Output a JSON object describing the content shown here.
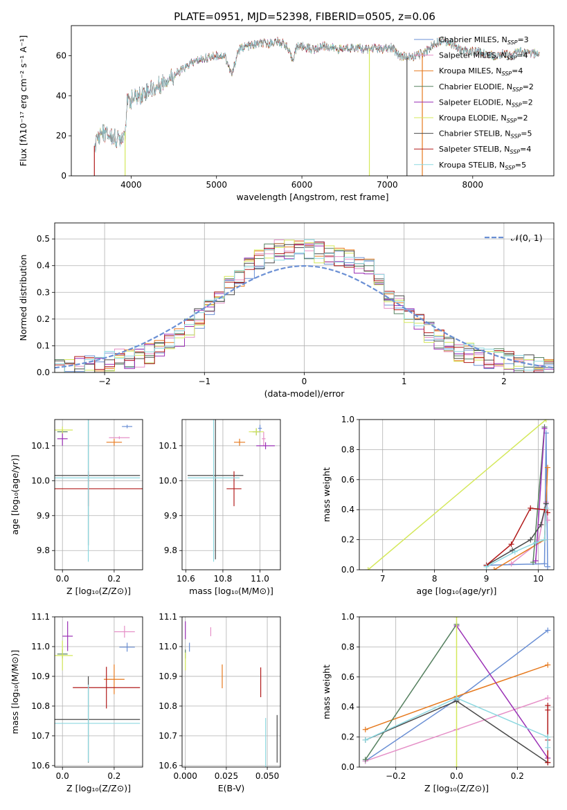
{
  "figure": {
    "title": "PLATE=0951, MJD=52398, FIBERID=0505, z=0.06"
  },
  "chart_data": [
    {
      "id": "spectrum",
      "type": "line",
      "title": "PLATE=0951, MJD=52398, FIBERID=0505, z=0.06",
      "xlabel": "wavelength [Angstrom, rest frame]",
      "ylabel": "Flux [fλ10⁻¹⁷ erg cm⁻² s⁻¹ A⁻¹]",
      "xlim": [
        3300,
        8950
      ],
      "ylim": [
        0,
        75
      ],
      "xticks": [
        4000,
        5000,
        6000,
        7000,
        8000
      ],
      "yticks": [
        0,
        20,
        40,
        60
      ],
      "grid": false,
      "legend_position": "top-right",
      "spectrum_shape": {
        "x": [
          3570,
          3650,
          3750,
          3850,
          3930,
          3950,
          4000,
          4100,
          4200,
          4300,
          4400,
          4500,
          4600,
          4700,
          4800,
          4900,
          5000,
          5100,
          5180,
          5250,
          5300,
          5400,
          5500,
          5600,
          5700,
          5800,
          5890,
          5950,
          6050,
          6150,
          6250,
          6350,
          6450,
          6550,
          6650,
          6750,
          6850,
          6950,
          7050,
          7150,
          7250,
          7350,
          7450,
          7550,
          7650,
          7750,
          7850,
          7950,
          8050,
          8150,
          8250,
          8350,
          8450,
          8550,
          8650,
          8780
        ],
        "y": [
          15,
          22,
          20,
          18,
          22,
          36,
          38,
          40,
          43,
          44,
          48,
          50,
          53,
          56,
          58,
          59,
          60,
          60,
          50,
          62,
          64,
          65,
          66,
          66,
          67,
          66,
          58,
          65,
          64,
          63,
          65,
          64,
          63,
          64,
          64,
          63,
          64,
          63,
          64,
          60,
          59,
          60,
          62,
          66,
          68,
          66,
          63,
          62,
          62,
          61,
          60,
          61,
          60,
          62,
          61,
          61
        ]
      },
      "series": [
        {
          "name": "Chabrier MILES, N_SSP=3",
          "color": "#6a8fd4"
        },
        {
          "name": "Salpeter MILES, N_SSP=4",
          "color": "#e58fc7"
        },
        {
          "name": "Kroupa MILES, N_SSP=4",
          "color": "#e6791d"
        },
        {
          "name": "Chabrier ELODIE, N_SSP=2",
          "color": "#55805f"
        },
        {
          "name": "Salpeter ELODIE, N_SSP=2",
          "color": "#9a2fb5"
        },
        {
          "name": "Kroupa ELODIE, N_SSP=2",
          "color": "#d4e85a"
        },
        {
          "name": "Chabrier STELIB, N_SSP=5",
          "color": "#4a4a4a"
        },
        {
          "name": "Salpeter STELIB, N_SSP=4",
          "color": "#b11a1a"
        },
        {
          "name": "Kroupa STELIB, N_SSP=5",
          "color": "#8cd8e0"
        }
      ],
      "legend": [
        {
          "base": "Chabrier MILES, N",
          "sub": "SSP",
          "suffix": "=3",
          "color": "#6a8fd4"
        },
        {
          "base": "Salpeter MILES, N",
          "sub": "SSP",
          "suffix": "=4",
          "color": "#e58fc7"
        },
        {
          "base": "Kroupa MILES, N",
          "sub": "SSP",
          "suffix": "=4",
          "color": "#e6791d"
        },
        {
          "base": "Chabrier ELODIE, N",
          "sub": "SSP",
          "suffix": "=2",
          "color": "#55805f"
        },
        {
          "base": "Salpeter ELODIE, N",
          "sub": "SSP",
          "suffix": "=2",
          "color": "#9a2fb5"
        },
        {
          "base": "Kroupa ELODIE, N",
          "sub": "SSP",
          "suffix": "=2",
          "color": "#d4e85a"
        },
        {
          "base": "Chabrier STELIB, N",
          "sub": "SSP",
          "suffix": "=5",
          "color": "#4a4a4a"
        },
        {
          "base": "Salpeter STELIB, N",
          "sub": "SSP",
          "suffix": "=4",
          "color": "#b11a1a"
        },
        {
          "base": "Kroupa STELIB, N",
          "sub": "SSP",
          "suffix": "=5",
          "color": "#8cd8e0"
        }
      ]
    },
    {
      "id": "residuals",
      "type": "line",
      "xlabel": "(data-model)/error",
      "ylabel": "Normed distribution",
      "xlim": [
        -2.5,
        2.5
      ],
      "ylim": [
        0,
        0.56
      ],
      "xticks": [
        -2,
        -1,
        0,
        1,
        2
      ],
      "yticks": [
        0.0,
        0.1,
        0.2,
        0.3,
        0.4,
        0.5
      ],
      "grid": true,
      "legend_position": "top-right",
      "reference": {
        "name": "𝒩(0, 1)",
        "color": "#6a8fd4",
        "style": "dashed"
      },
      "bin_width": 0.1,
      "histogram_shape": {
        "bin_centers": [
          -2.45,
          -2.35,
          -2.25,
          -2.15,
          -2.05,
          -1.95,
          -1.85,
          -1.75,
          -1.65,
          -1.55,
          -1.45,
          -1.35,
          -1.25,
          -1.15,
          -1.05,
          -0.95,
          -0.85,
          -0.75,
          -0.65,
          -0.55,
          -0.45,
          -0.35,
          -0.25,
          -0.15,
          -0.05,
          0.05,
          0.15,
          0.25,
          0.35,
          0.45,
          0.55,
          0.65,
          0.75,
          0.85,
          0.95,
          1.05,
          1.15,
          1.25,
          1.35,
          1.45,
          1.55,
          1.65,
          1.75,
          1.85,
          1.95,
          2.05,
          2.15,
          2.25,
          2.35,
          2.45
        ],
        "values": [
          0.01,
          0.01,
          0.02,
          0.03,
          0.03,
          0.04,
          0.05,
          0.05,
          0.06,
          0.07,
          0.09,
          0.11,
          0.13,
          0.17,
          0.2,
          0.24,
          0.28,
          0.32,
          0.36,
          0.39,
          0.42,
          0.45,
          0.46,
          0.46,
          0.47,
          0.46,
          0.45,
          0.44,
          0.43,
          0.42,
          0.41,
          0.39,
          0.33,
          0.28,
          0.25,
          0.22,
          0.18,
          0.15,
          0.12,
          0.1,
          0.08,
          0.07,
          0.06,
          0.05,
          0.05,
          0.04,
          0.03,
          0.03,
          0.02,
          0.02
        ]
      }
    },
    {
      "id": "age-vs-Z",
      "type": "scatter",
      "xlabel": "Z [log₁₀(Z/Z⊙)]",
      "ylabel": "age  [log₁₀(age/yr)]",
      "xlim": [
        -0.03,
        0.31
      ],
      "ylim": [
        9.745,
        10.175
      ],
      "xticks": [
        0.0,
        0.2
      ],
      "yticks": [
        9.8,
        9.9,
        10.0,
        10.1
      ],
      "grid": true,
      "points": [
        {
          "series": "Chabrier MILES",
          "x": 0.25,
          "y": 10.155,
          "xerr": 0.02,
          "yerr": 0.005
        },
        {
          "series": "Salpeter MILES",
          "x": 0.22,
          "y": 10.123,
          "xerr": 0.04,
          "yerr": 0.004
        },
        {
          "series": "Kroupa MILES",
          "x": 0.2,
          "y": 10.11,
          "xerr": 0.03,
          "yerr": 0.01
        },
        {
          "series": "Chabrier ELODIE",
          "x": 0.0,
          "y": 10.14,
          "xerr": 0.02,
          "yerr": 0.005
        },
        {
          "series": "Salpeter ELODIE",
          "x": 0.0,
          "y": 10.12,
          "xerr": 0.02,
          "yerr": 0.02
        },
        {
          "series": "Kroupa ELODIE",
          "x": 0.0,
          "y": 10.145,
          "xerr": 0.04,
          "yerr": 0.01
        },
        {
          "series": "Chabrier STELIB",
          "x": 0.1,
          "y": 10.015,
          "xerr": 0.2,
          "yerr": 0.2
        },
        {
          "series": "Salpeter STELIB",
          "x": 0.1,
          "y": 9.977,
          "xerr": 0.24,
          "yerr": 0.05
        },
        {
          "series": "Kroupa STELIB",
          "x": 0.1,
          "y": 10.008,
          "xerr": 0.2,
          "yerr": 0.24
        }
      ]
    },
    {
      "id": "age-vs-mass",
      "type": "scatter",
      "xlabel": "mass [log₁₀(M/M⊙)]",
      "xlim": [
        10.58,
        11.11
      ],
      "ylim": [
        9.745,
        10.175
      ],
      "xticks": [
        10.6,
        10.8,
        11.0
      ],
      "yticks": [
        9.8,
        9.9,
        10.0,
        10.1
      ],
      "grid": true,
      "points": [
        {
          "series": "Chabrier MILES",
          "x": 11.0,
          "y": 10.15,
          "xerr": 0.01,
          "yerr": 0.01
        },
        {
          "series": "Salpeter MILES",
          "x": 11.02,
          "y": 10.12,
          "xerr": 0.01,
          "yerr": 0.02
        },
        {
          "series": "Kroupa MILES",
          "x": 10.89,
          "y": 10.11,
          "xerr": 0.03,
          "yerr": 0.01
        },
        {
          "series": "Chabrier ELODIE",
          "x": 10.98,
          "y": 10.14,
          "xerr": 0.02,
          "yerr": 0.01
        },
        {
          "series": "Salpeter ELODIE",
          "x": 11.03,
          "y": 10.1,
          "xerr": 0.05,
          "yerr": 0.01
        },
        {
          "series": "Kroupa ELODIE",
          "x": 10.98,
          "y": 10.14,
          "xerr": 0.04,
          "yerr": 0.01
        },
        {
          "series": "Chabrier STELIB",
          "x": 10.76,
          "y": 10.015,
          "xerr": 0.15,
          "yerr": 0.24
        },
        {
          "series": "Salpeter STELIB",
          "x": 10.86,
          "y": 9.977,
          "xerr": 0.04,
          "yerr": 0.05
        },
        {
          "series": "Kroupa STELIB",
          "x": 10.75,
          "y": 10.008,
          "xerr": 0.14,
          "yerr": 0.24
        }
      ]
    },
    {
      "id": "weight-vs-age",
      "type": "line",
      "xlabel": "age  [log₁₀(age/yr)]",
      "ylabel": "mass weight",
      "xlim": [
        6.55,
        10.3
      ],
      "ylim": [
        0,
        1.0
      ],
      "xticks": [
        7,
        8,
        9,
        10
      ],
      "yticks": [
        0.0,
        0.2,
        0.4,
        0.6,
        0.8,
        1.0
      ],
      "grid": true,
      "series": [
        {
          "name": "Chabrier MILES",
          "x": [
            9.0,
            10.12,
            10.15,
            10.18
          ],
          "y": [
            0.03,
            0.04,
            0.91,
            0.02
          ]
        },
        {
          "name": "Salpeter MILES",
          "x": [
            9.48,
            10.0,
            10.15,
            10.18
          ],
          "y": [
            0.04,
            0.18,
            0.45,
            0.33
          ]
        },
        {
          "name": "Kroupa MILES",
          "x": [
            9.15,
            10.12,
            10.18
          ],
          "y": [
            0.0,
            0.2,
            0.68
          ]
        },
        {
          "name": "Chabrier ELODIE",
          "x": [
            9.9,
            10.12
          ],
          "y": [
            0.05,
            0.95
          ]
        },
        {
          "name": "Salpeter ELODIE",
          "x": [
            9.95,
            10.12
          ],
          "y": [
            0.06,
            0.94
          ]
        },
        {
          "name": "Kroupa ELODIE",
          "x": [
            6.72,
            10.15
          ],
          "y": [
            0.0,
            1.0
          ]
        },
        {
          "name": "Chabrier STELIB",
          "x": [
            9.0,
            9.5,
            9.85,
            10.05,
            10.15
          ],
          "y": [
            0.03,
            0.13,
            0.2,
            0.3,
            0.44
          ]
        },
        {
          "name": "Salpeter STELIB",
          "x": [
            9.0,
            9.48,
            9.85,
            10.12,
            10.18
          ],
          "y": [
            0.03,
            0.17,
            0.41,
            0.4,
            0.38
          ]
        },
        {
          "name": "Kroupa STELIB",
          "x": [
            9.0,
            9.55,
            9.95,
            10.12,
            10.15
          ],
          "y": [
            0.02,
            0.12,
            0.18,
            0.2,
            0.41
          ]
        }
      ]
    },
    {
      "id": "mass-vs-Z",
      "type": "scatter",
      "xlabel": "Z [log₁₀(Z/Z⊙)]",
      "ylabel": "mass [log₁₀(M/M⊙)]",
      "xlim": [
        -0.03,
        0.31
      ],
      "ylim": [
        10.595,
        11.1
      ],
      "xticks": [
        0.0,
        0.2
      ],
      "yticks": [
        10.6,
        10.7,
        10.8,
        10.9,
        11.0,
        11.1
      ],
      "grid": true,
      "points": [
        {
          "series": "Chabrier MILES",
          "x": 0.25,
          "y": 10.998,
          "xerr": 0.03,
          "yerr": 0.015
        },
        {
          "series": "Salpeter MILES",
          "x": 0.24,
          "y": 11.05,
          "xerr": 0.04,
          "yerr": 0.02
        },
        {
          "series": "Kroupa MILES",
          "x": 0.2,
          "y": 10.89,
          "xerr": 0.04,
          "yerr": 0.05
        },
        {
          "series": "Chabrier ELODIE",
          "x": 0.0,
          "y": 10.975,
          "xerr": 0.02,
          "yerr": 0.015
        },
        {
          "series": "Salpeter ELODIE",
          "x": 0.02,
          "y": 11.035,
          "xerr": 0.02,
          "yerr": 0.05
        },
        {
          "series": "Kroupa ELODIE",
          "x": 0.0,
          "y": 10.97,
          "xerr": 0.04,
          "yerr": 0.05
        },
        {
          "series": "Chabrier STELIB",
          "x": 0.1,
          "y": 10.755,
          "xerr": 0.2,
          "yerr": 0.145
        },
        {
          "series": "Salpeter STELIB",
          "x": 0.17,
          "y": 10.862,
          "xerr": 0.13,
          "yerr": 0.07
        },
        {
          "series": "Kroupa STELIB",
          "x": 0.1,
          "y": 10.742,
          "xerr": 0.2,
          "yerr": 0.13
        }
      ]
    },
    {
      "id": "mass-vs-ebv",
      "type": "scatter",
      "xlabel": "E(B-V)",
      "xlim": [
        -0.002,
        0.058
      ],
      "ylim": [
        10.595,
        11.1
      ],
      "xticks": [
        0.0,
        0.025,
        0.05
      ],
      "yticks": [
        10.6,
        10.7,
        10.8,
        10.9,
        11.0,
        11.1
      ],
      "grid": true,
      "points": [
        {
          "series": "Chabrier MILES",
          "x": 0.0025,
          "y": 10.998,
          "xerr": 0.0,
          "yerr": 0.015
        },
        {
          "series": "Salpeter MILES",
          "x": 0.0155,
          "y": 11.05,
          "xerr": 0.0,
          "yerr": 0.015
        },
        {
          "series": "Kroupa MILES",
          "x": 0.0225,
          "y": 10.9,
          "xerr": 0.0,
          "yerr": 0.04
        },
        {
          "series": "Chabrier ELODIE",
          "x": 0.0,
          "y": 10.975,
          "xerr": 0.0,
          "yerr": 0.015
        },
        {
          "series": "Salpeter ELODIE",
          "x": 0.0,
          "y": 11.055,
          "xerr": 0.0,
          "yerr": 0.03
        },
        {
          "series": "Kroupa ELODIE",
          "x": 0.0,
          "y": 10.95,
          "xerr": 0.0,
          "yerr": 0.03
        },
        {
          "series": "Chabrier STELIB",
          "x": 0.056,
          "y": 10.69,
          "xerr": 0.0,
          "yerr": 0.08
        },
        {
          "series": "Salpeter STELIB",
          "x": 0.046,
          "y": 10.88,
          "xerr": 0.0,
          "yerr": 0.05
        },
        {
          "series": "Kroupa STELIB",
          "x": 0.049,
          "y": 10.67,
          "xerr": 0.0,
          "yerr": 0.09
        }
      ]
    },
    {
      "id": "weight-vs-Z",
      "type": "line",
      "xlabel": "Z [log₁₀(Z/Z⊙)]",
      "ylabel": "mass weight",
      "xlim": [
        -0.32,
        0.32
      ],
      "ylim": [
        0,
        1.0
      ],
      "xticks": [
        -0.2,
        0.0,
        0.2
      ],
      "yticks": [
        0.0,
        0.2,
        0.4,
        0.6,
        0.8,
        1.0
      ],
      "grid": true,
      "series": [
        {
          "name": "Chabrier MILES",
          "x": [
            -0.3,
            0.0,
            0.3
          ],
          "y": [
            0.04,
            0.45,
            0.91
          ]
        },
        {
          "name": "Salpeter MILES",
          "x": [
            -0.3,
            0.0,
            0.3
          ],
          "y": [
            0.04,
            0.25,
            0.46
          ]
        },
        {
          "name": "Kroupa MILES",
          "x": [
            -0.3,
            0.0,
            0.3
          ],
          "y": [
            0.25,
            0.47,
            0.68
          ]
        },
        {
          "name": "Chabrier ELODIE",
          "x": [
            -0.3,
            0.0
          ],
          "y": [
            0.05,
            0.95
          ]
        },
        {
          "name": "Salpeter ELODIE",
          "x": [
            0.0,
            0.3
          ],
          "y": [
            0.94,
            0.06
          ]
        },
        {
          "name": "Kroupa ELODIE",
          "x": [
            0.0,
            0.0
          ],
          "y": [
            0.0,
            1.0
          ]
        },
        {
          "name": "Chabrier STELIB",
          "x": [
            -0.3,
            0.0,
            0.3
          ],
          "y": [
            0.18,
            0.44,
            0.03
          ]
        },
        {
          "name": "Salpeter STELIB",
          "x": [
            0.3,
            0.3,
            0.3,
            0.3
          ],
          "y": [
            0.41,
            0.38,
            0.18,
            0.03
          ]
        },
        {
          "name": "Kroupa STELIB",
          "x": [
            -0.3,
            0.0,
            0.3,
            0.3
          ],
          "y": [
            0.18,
            0.46,
            0.2,
            0.13
          ]
        }
      ]
    }
  ]
}
